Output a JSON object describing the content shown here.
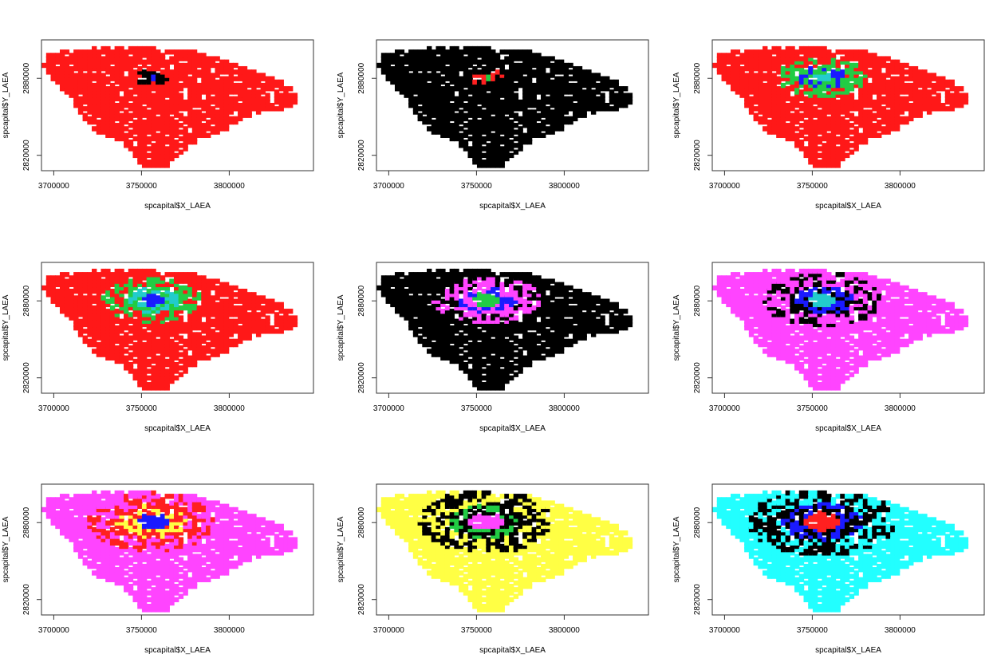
{
  "chart_data": [
    {
      "type": "scatter",
      "xlabel": "spcapital$X_LAEA",
      "ylabel": "spcapital$Y_LAEA",
      "xticks": [
        3700000,
        3750000,
        3800000
      ],
      "yticks": [
        2820000,
        2880000
      ],
      "base_color": "#ff1818",
      "core_colors": [
        "#000000",
        "#000000",
        "#1a1aff"
      ]
    },
    {
      "type": "scatter",
      "xlabel": "spcapital$X_LAEA",
      "ylabel": "spcapital$Y_LAEA",
      "xticks": [
        3700000,
        3750000,
        3800000
      ],
      "yticks": [
        2820000,
        2880000
      ],
      "base_color": "#000000",
      "core_colors": [
        "#ff2020",
        "#ff2020",
        "#22cc44"
      ]
    },
    {
      "type": "scatter",
      "xlabel": "spcapital$X_LAEA",
      "ylabel": "spcapital$Y_LAEA",
      "xticks": [
        3700000,
        3750000,
        3800000
      ],
      "yticks": [
        2820000,
        2880000
      ],
      "base_color": "#ff1818",
      "core_colors": [
        "#22cc44",
        "#1a1aff",
        "#22cccc"
      ]
    },
    {
      "type": "scatter",
      "xlabel": "spcapital$X_LAEA",
      "ylabel": "spcapital$Y_LAEA",
      "xticks": [
        3700000,
        3750000,
        3800000
      ],
      "yticks": [
        2820000,
        2880000
      ],
      "base_color": "#ff1818",
      "core_colors": [
        "#22cc44",
        "#22cccc",
        "#1a1aff"
      ]
    },
    {
      "type": "scatter",
      "xlabel": "spcapital$X_LAEA",
      "ylabel": "spcapital$Y_LAEA",
      "xticks": [
        3700000,
        3750000,
        3800000
      ],
      "yticks": [
        2820000,
        2880000
      ],
      "base_color": "#000000",
      "core_colors": [
        "#ff44ff",
        "#1a1aff",
        "#22cc44"
      ]
    },
    {
      "type": "scatter",
      "xlabel": "spcapital$X_LAEA",
      "ylabel": "spcapital$Y_LAEA",
      "xticks": [
        3700000,
        3750000,
        3800000
      ],
      "yticks": [
        2820000,
        2880000
      ],
      "base_color": "#ff44ff",
      "core_colors": [
        "#000000",
        "#1a1aff",
        "#22cccc"
      ]
    },
    {
      "type": "scatter",
      "xlabel": "spcapital$X_LAEA",
      "ylabel": "spcapital$Y_LAEA",
      "xticks": [
        3700000,
        3750000,
        3800000
      ],
      "yticks": [
        2820000,
        2880000
      ],
      "base_color": "#ff44ff",
      "core_colors": [
        "#ff2020",
        "#ffff44",
        "#1a1aff"
      ]
    },
    {
      "type": "scatter",
      "xlabel": "spcapital$X_LAEA",
      "ylabel": "spcapital$Y_LAEA",
      "xticks": [
        3700000,
        3750000,
        3800000
      ],
      "yticks": [
        2820000,
        2880000
      ],
      "base_color": "#ffff44",
      "core_colors": [
        "#000000",
        "#22cc44",
        "#ff44ff"
      ]
    },
    {
      "type": "scatter",
      "xlabel": "spcapital$X_LAEA",
      "ylabel": "spcapital$Y_LAEA",
      "xticks": [
        3700000,
        3750000,
        3800000
      ],
      "yticks": [
        2820000,
        2880000
      ],
      "base_color": "#22ffff",
      "core_colors": [
        "#000000",
        "#1a1aff",
        "#ff2020"
      ]
    }
  ]
}
